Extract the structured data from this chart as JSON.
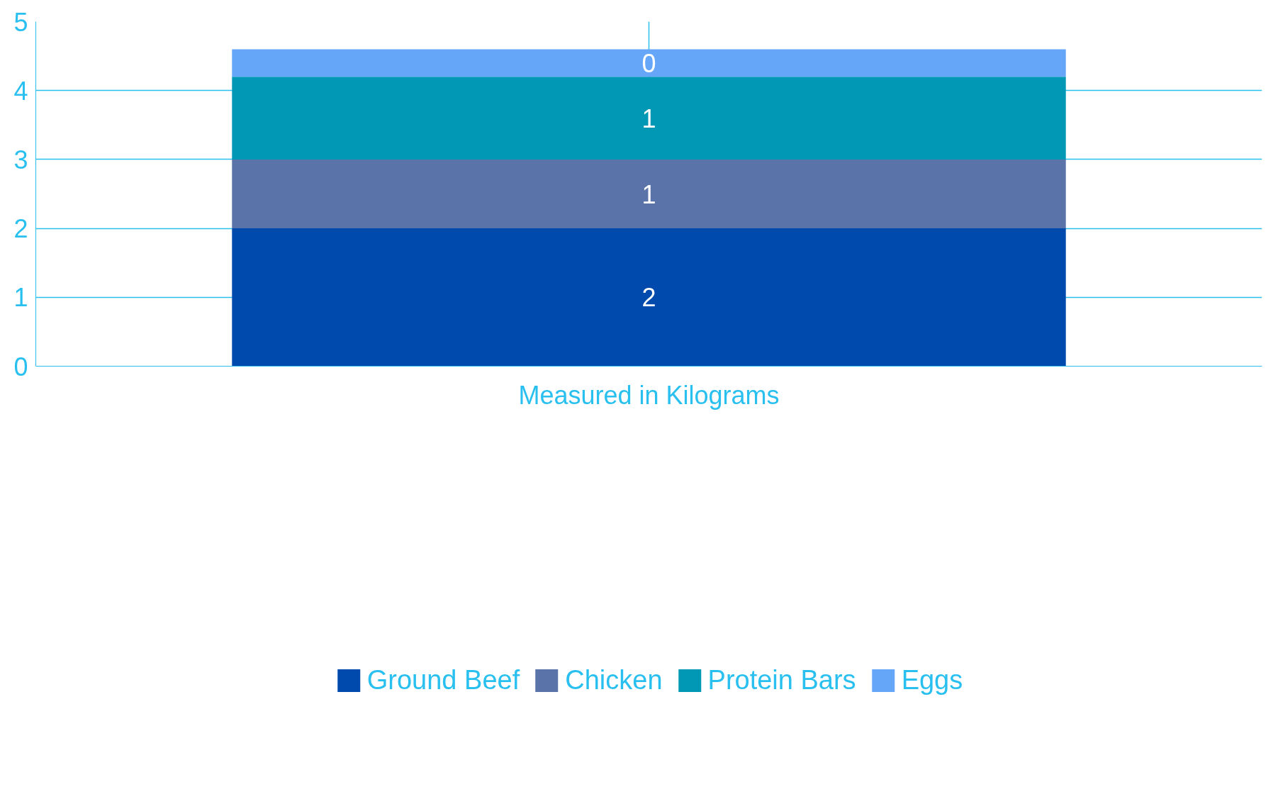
{
  "chart_data": {
    "type": "bar",
    "stacked": true,
    "categories": [
      "Measured in Kilograms"
    ],
    "series": [
      {
        "name": "Ground Beef",
        "color": "#004aad",
        "values": [
          2
        ],
        "value_labels": [
          "2"
        ]
      },
      {
        "name": "Chicken",
        "color": "#5a73a9",
        "values": [
          1
        ],
        "value_labels": [
          "1"
        ]
      },
      {
        "name": "Protein Bars",
        "color": "#0098b4",
        "values": [
          1.2
        ],
        "value_labels": [
          "1"
        ]
      },
      {
        "name": "Eggs",
        "color": "#66a6f9",
        "values": [
          0.4
        ],
        "value_labels": [
          "0"
        ]
      }
    ],
    "ylim": [
      0,
      5
    ],
    "yticks": [
      0,
      1,
      2,
      3,
      4,
      5
    ],
    "grid": true,
    "legend": "bottom"
  }
}
